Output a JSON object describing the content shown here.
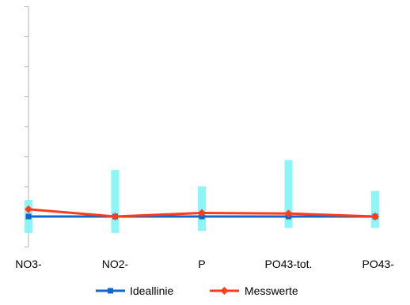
{
  "chart_data": {
    "type": "line",
    "categories": [
      "NO3-",
      "NO2-",
      "P",
      "PO43-tot.",
      "PO43-"
    ],
    "series": [
      {
        "name": "Ideallinie",
        "color": "#1166cc",
        "marker": "square",
        "values": [
          0,
          0,
          0,
          0,
          0
        ]
      },
      {
        "name": "Messwerte",
        "color": "#ff3b1e",
        "marker": "diamond",
        "values": [
          0.24,
          0.0,
          0.12,
          0.1,
          0.0
        ]
      }
    ],
    "error_bars": {
      "color": "#7ff4f4",
      "ranges": [
        [
          -0.55,
          0.55
        ],
        [
          -0.55,
          1.55
        ],
        [
          -0.48,
          1.0
        ],
        [
          -0.38,
          1.88
        ],
        [
          -0.38,
          0.85
        ]
      ]
    },
    "ylim": [
      -1,
      7
    ],
    "y_tick_step": 1,
    "grid": false,
    "legend_position": "bottom"
  }
}
